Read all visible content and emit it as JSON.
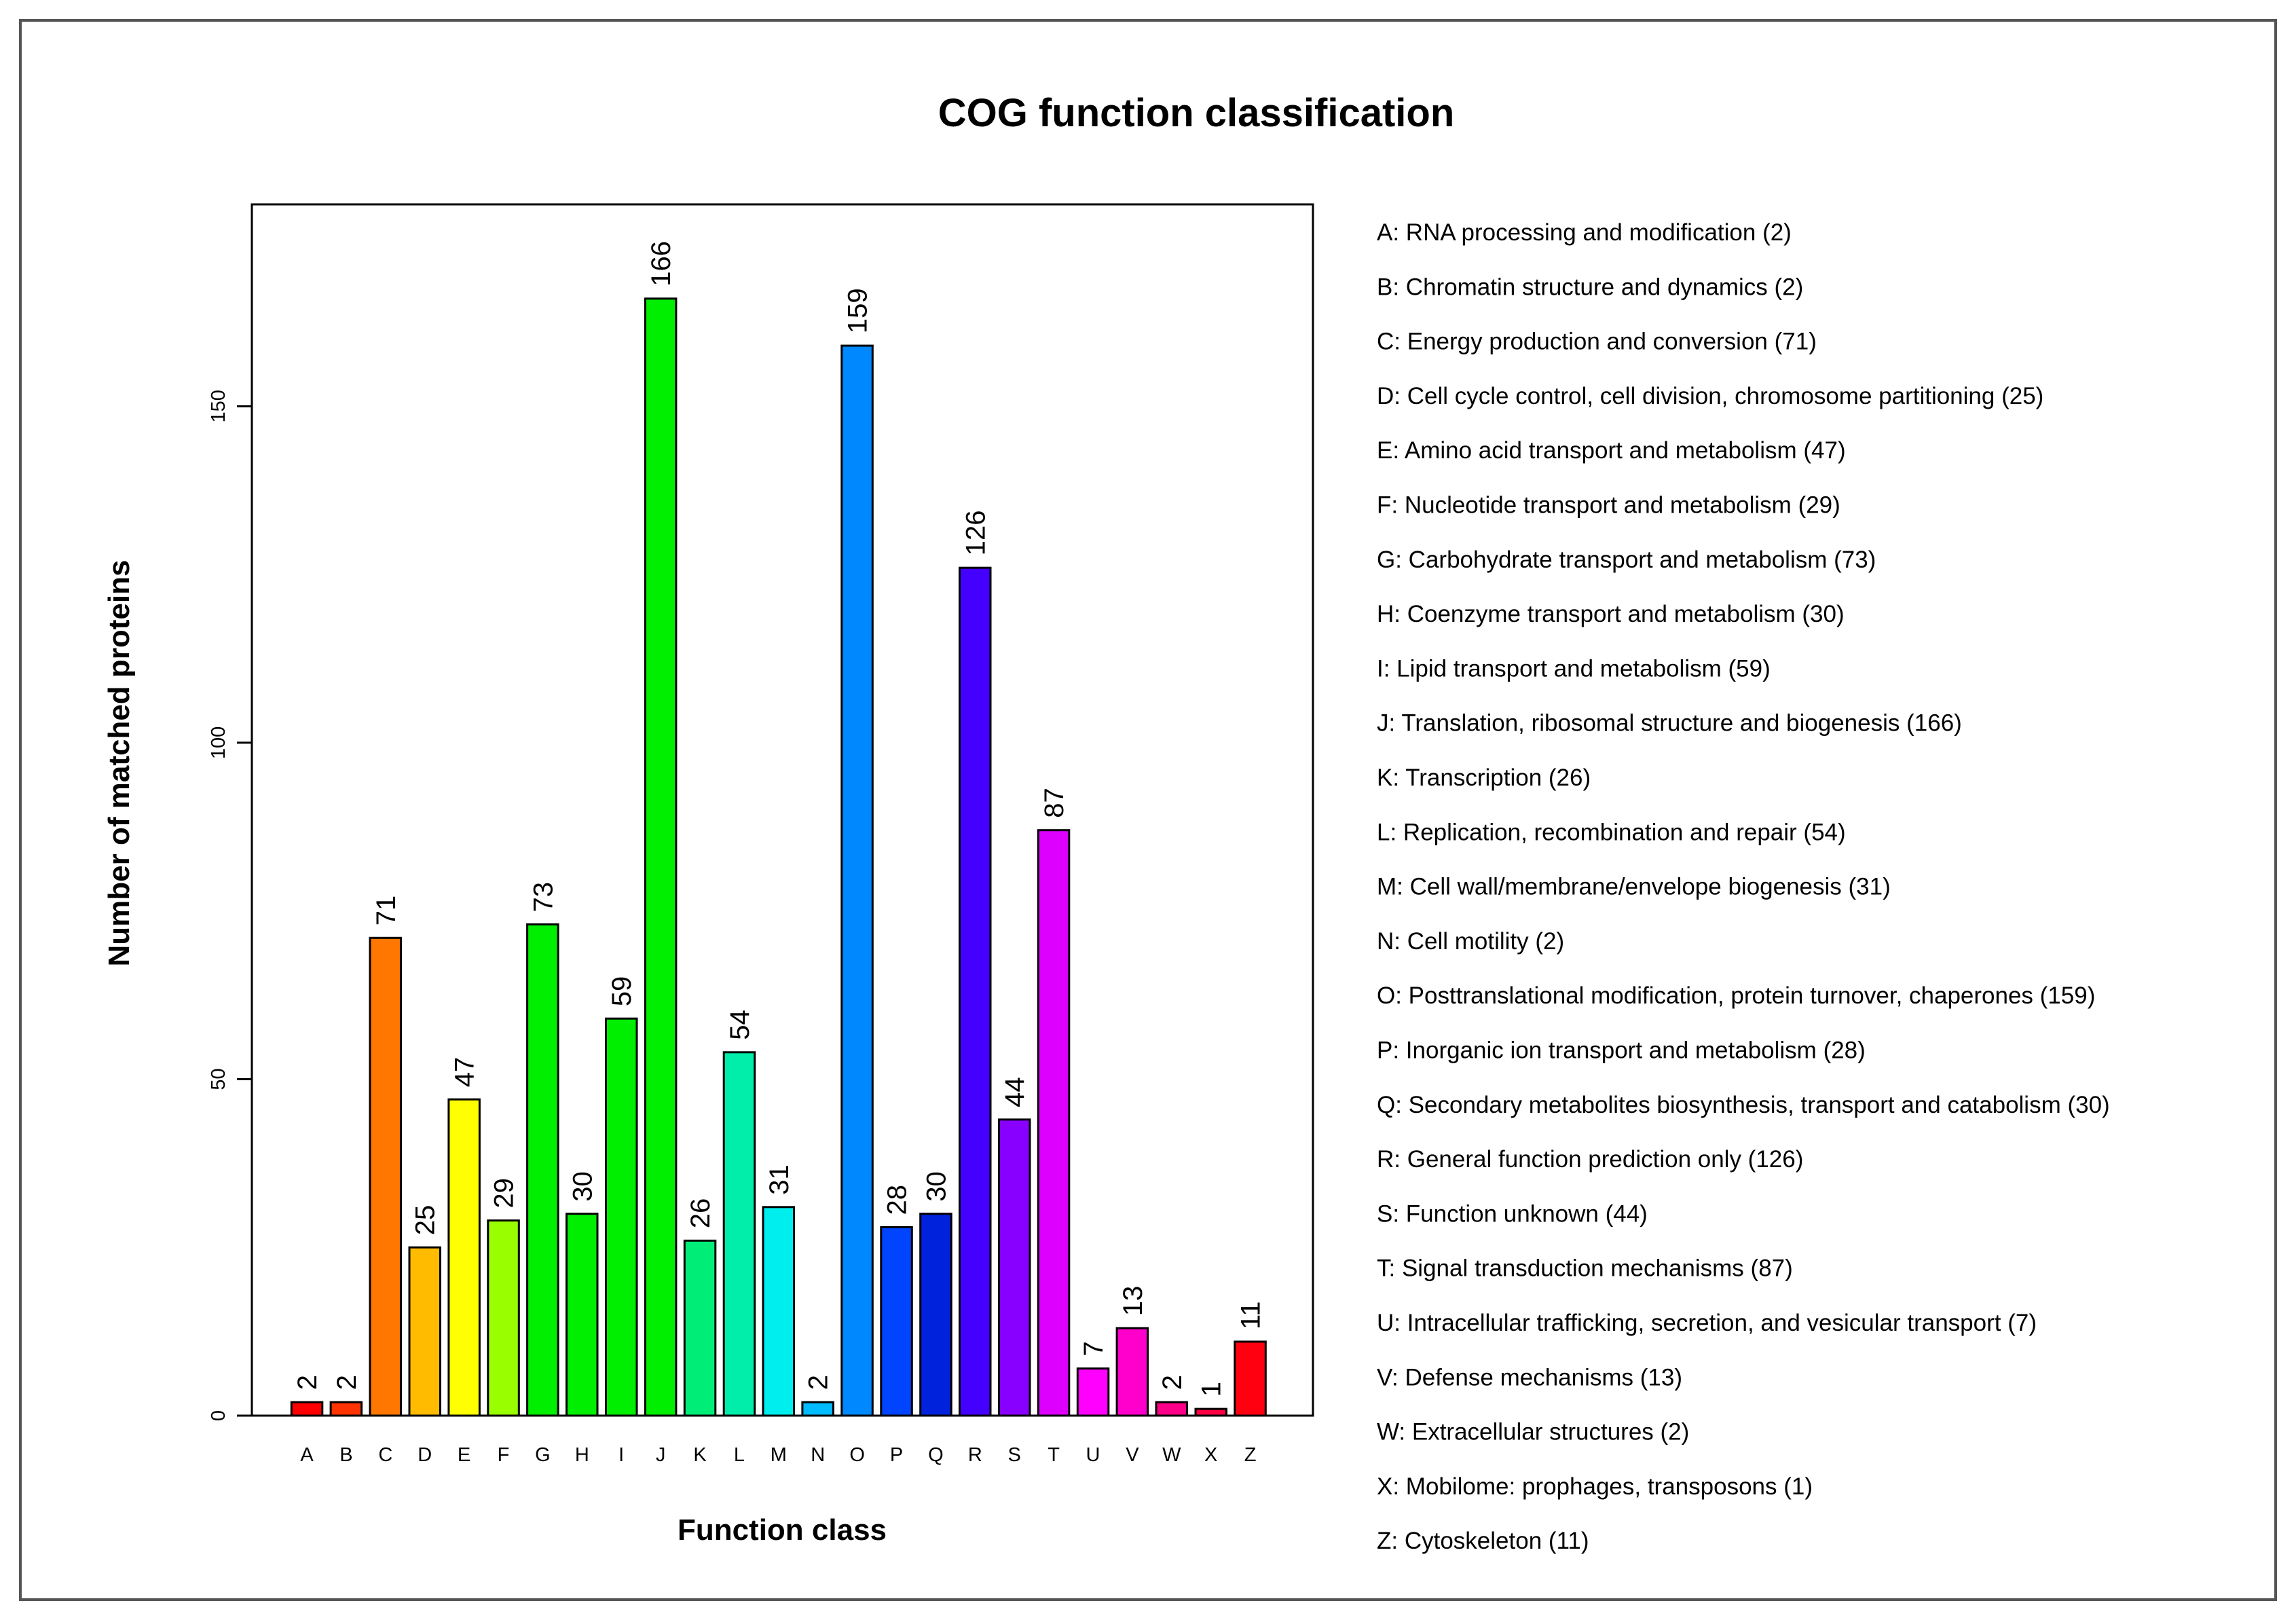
{
  "chart_data": {
    "type": "bar",
    "title": "COG function classification",
    "xlabel": "Function class",
    "ylabel": "Number of matched proteins",
    "ylim": [
      0,
      180
    ],
    "yticks": [
      0,
      50,
      100,
      150
    ],
    "grid": false,
    "legend_position": "right",
    "categories": [
      "A",
      "B",
      "C",
      "D",
      "E",
      "F",
      "G",
      "H",
      "I",
      "J",
      "K",
      "L",
      "M",
      "N",
      "O",
      "P",
      "Q",
      "R",
      "S",
      "T",
      "U",
      "V",
      "W",
      "X",
      "Z"
    ],
    "values": [
      2,
      2,
      71,
      25,
      47,
      29,
      73,
      30,
      59,
      166,
      26,
      54,
      31,
      2,
      159,
      28,
      30,
      126,
      44,
      87,
      7,
      13,
      2,
      1,
      11
    ],
    "colors": [
      "#ff0000",
      "#ff3300",
      "#ff7700",
      "#ffbb00",
      "#ffff00",
      "#99ff00",
      "#00ee00",
      "#00ee00",
      "#00ee00",
      "#00ee00",
      "#00ee77",
      "#00eeaa",
      "#00eeee",
      "#00bbff",
      "#0088ff",
      "#0044ff",
      "#0022dd",
      "#4400ff",
      "#8800ff",
      "#dd00ff",
      "#ff00ff",
      "#ff00cc",
      "#ff0088",
      "#ff0044",
      "#ff0011"
    ],
    "legend": [
      {
        "code": "A",
        "text": "RNA processing and modification",
        "count": "(2)"
      },
      {
        "code": "B",
        "text": "Chromatin structure and dynamics",
        "count": "(2)"
      },
      {
        "code": "C",
        "text": "Energy production and conversion",
        "count": "(71)"
      },
      {
        "code": "D",
        "text": "Cell cycle control, cell division, chromosome partitioning",
        "count": "(25)"
      },
      {
        "code": "E",
        "text": "Amino acid transport and metabolism",
        "count": "(47)"
      },
      {
        "code": "F",
        "text": "Nucleotide transport and metabolism",
        "count": "(29)"
      },
      {
        "code": "G",
        "text": "Carbohydrate transport and metabolism",
        "count": "(73)"
      },
      {
        "code": "H",
        "text": "Coenzyme transport and metabolism",
        "count": "(30)"
      },
      {
        "code": "I",
        "text": "Lipid transport and metabolism",
        "count": "(59)"
      },
      {
        "code": "J",
        "text": "Translation, ribosomal structure and biogenesis",
        "count": "(166)"
      },
      {
        "code": "K",
        "text": "Transcription",
        "count": "(26)"
      },
      {
        "code": "L",
        "text": "Replication, recombination and repair",
        "count": "(54)"
      },
      {
        "code": "M",
        "text": "Cell wall/membrane/envelope biogenesis",
        "count": "(31)"
      },
      {
        "code": "N",
        "text": "Cell motility",
        "count": "(2)"
      },
      {
        "code": "O",
        "text": "Posttranslational modification, protein turnover, chaperones",
        "count": "(159)"
      },
      {
        "code": "P",
        "text": "Inorganic ion transport and metabolism",
        "count": "(28)"
      },
      {
        "code": "Q",
        "text": "Secondary metabolites biosynthesis, transport and catabolism",
        "count": "(30)"
      },
      {
        "code": "R",
        "text": "General function prediction only",
        "count": "(126)"
      },
      {
        "code": "S",
        "text": "Function unknown",
        "count": "(44)"
      },
      {
        "code": "T",
        "text": "Signal transduction mechanisms",
        "count": "(87)"
      },
      {
        "code": "U",
        "text": "Intracellular trafficking, secretion, and vesicular transport",
        "count": "(7)"
      },
      {
        "code": "V",
        "text": "Defense mechanisms",
        "count": "(13)"
      },
      {
        "code": "W",
        "text": "Extracellular structures",
        "count": "(2)"
      },
      {
        "code": "X",
        "text": "Mobilome: prophages, transposons",
        "count": "(1)"
      },
      {
        "code": "Z",
        "text": "Cytoskeleton",
        "count": "(11)"
      }
    ]
  }
}
